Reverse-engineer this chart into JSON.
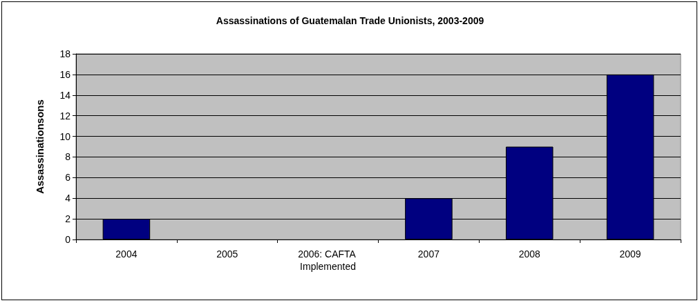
{
  "chart_data": {
    "type": "bar",
    "title": "Assassinations of Guatemalan Trade Unionists, 2003-2009",
    "ylabel": "Assassinationsons",
    "categories": [
      "2004",
      "2005",
      "2006: CAFTA Implemented",
      "2007",
      "2008",
      "2009"
    ],
    "values": [
      2,
      0,
      0,
      4,
      9,
      16
    ],
    "color": "#000080",
    "ylim": [
      0,
      18
    ],
    "yticks": [
      0,
      2,
      4,
      6,
      8,
      10,
      12,
      14,
      16,
      18
    ],
    "grid": "y"
  }
}
